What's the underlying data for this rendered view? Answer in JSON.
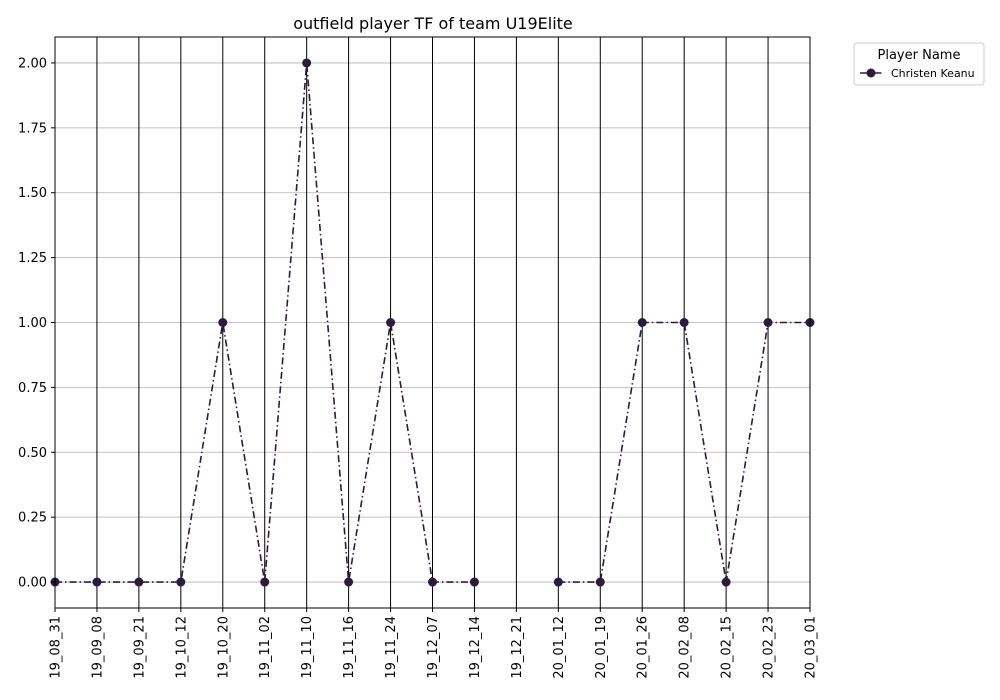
{
  "chart_data": {
    "type": "line",
    "title": "outfield player TF of team U19Elite",
    "xlabel": "",
    "ylabel": "",
    "categories": [
      "19_08_31",
      "19_09_08",
      "19_09_21",
      "19_10_12",
      "19_10_20",
      "19_11_02",
      "19_11_10",
      "19_11_16",
      "19_11_24",
      "19_12_07",
      "19_12_14",
      "19_12_21",
      "20_01_12",
      "20_01_19",
      "20_01_26",
      "20_02_08",
      "20_02_15",
      "20_02_23",
      "20_03_01"
    ],
    "ylim": [
      -0.1,
      2.1
    ],
    "yticks": [
      "0.00",
      "0.25",
      "0.50",
      "0.75",
      "1.00",
      "1.25",
      "1.50",
      "1.75",
      "2.00"
    ],
    "ytick_values": [
      0,
      0.25,
      0.5,
      0.75,
      1.0,
      1.25,
      1.5,
      1.75,
      2.0
    ],
    "grid": true,
    "legend": {
      "title": "Player Name",
      "placement": "outside-top-right"
    },
    "series": [
      {
        "name": "Christen Keanu",
        "color": "#2d1b3d",
        "linestyle": "dashdot",
        "marker": "circle",
        "values": [
          0,
          0,
          0,
          0,
          1,
          0,
          2,
          0,
          1,
          0,
          0,
          null,
          0,
          0,
          1,
          1,
          0,
          1,
          1
        ]
      }
    ]
  }
}
